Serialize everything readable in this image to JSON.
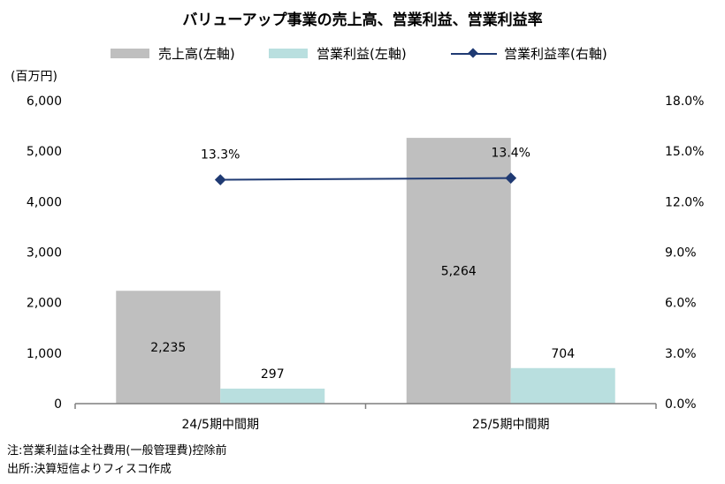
{
  "chart_data": {
    "type": "bar",
    "title": "バリューアップ事業の売上高、営業利益、営業利益率",
    "unit_label": "(百万円)",
    "categories": [
      "24/5期中間期",
      "25/5期中間期"
    ],
    "series": [
      {
        "name": "売上高(左軸)",
        "type": "bar",
        "axis": "left",
        "color": "#bfbfbf",
        "values": [
          2235,
          5264
        ],
        "labels": [
          "2,235",
          "5,264"
        ]
      },
      {
        "name": "営業利益(左軸)",
        "type": "bar",
        "axis": "left",
        "color": "#b9dfdf",
        "values": [
          297,
          704
        ],
        "labels": [
          "297",
          "704"
        ]
      },
      {
        "name": "営業利益率(右軸)",
        "type": "line",
        "axis": "right",
        "color": "#1f3a73",
        "values": [
          13.3,
          13.4
        ],
        "labels": [
          "13.3%",
          "13.4%"
        ]
      }
    ],
    "y_left": {
      "min": 0,
      "max": 6000,
      "ticks": [
        0,
        1000,
        2000,
        3000,
        4000,
        5000,
        6000
      ],
      "tick_labels": [
        "0",
        "1,000",
        "2,000",
        "3,000",
        "4,000",
        "5,000",
        "6,000"
      ]
    },
    "y_right": {
      "min": 0,
      "max": 18,
      "ticks": [
        0,
        3,
        6,
        9,
        12,
        15,
        18
      ],
      "tick_labels": [
        "0.0%",
        "3.0%",
        "6.0%",
        "9.0%",
        "12.0%",
        "15.0%",
        "18.0%"
      ]
    },
    "grid": false,
    "legend_position": "top"
  },
  "notes": [
    "注:営業利益は全社費用(一般管理費)控除前",
    "出所:決算短信よりフィスコ作成"
  ]
}
